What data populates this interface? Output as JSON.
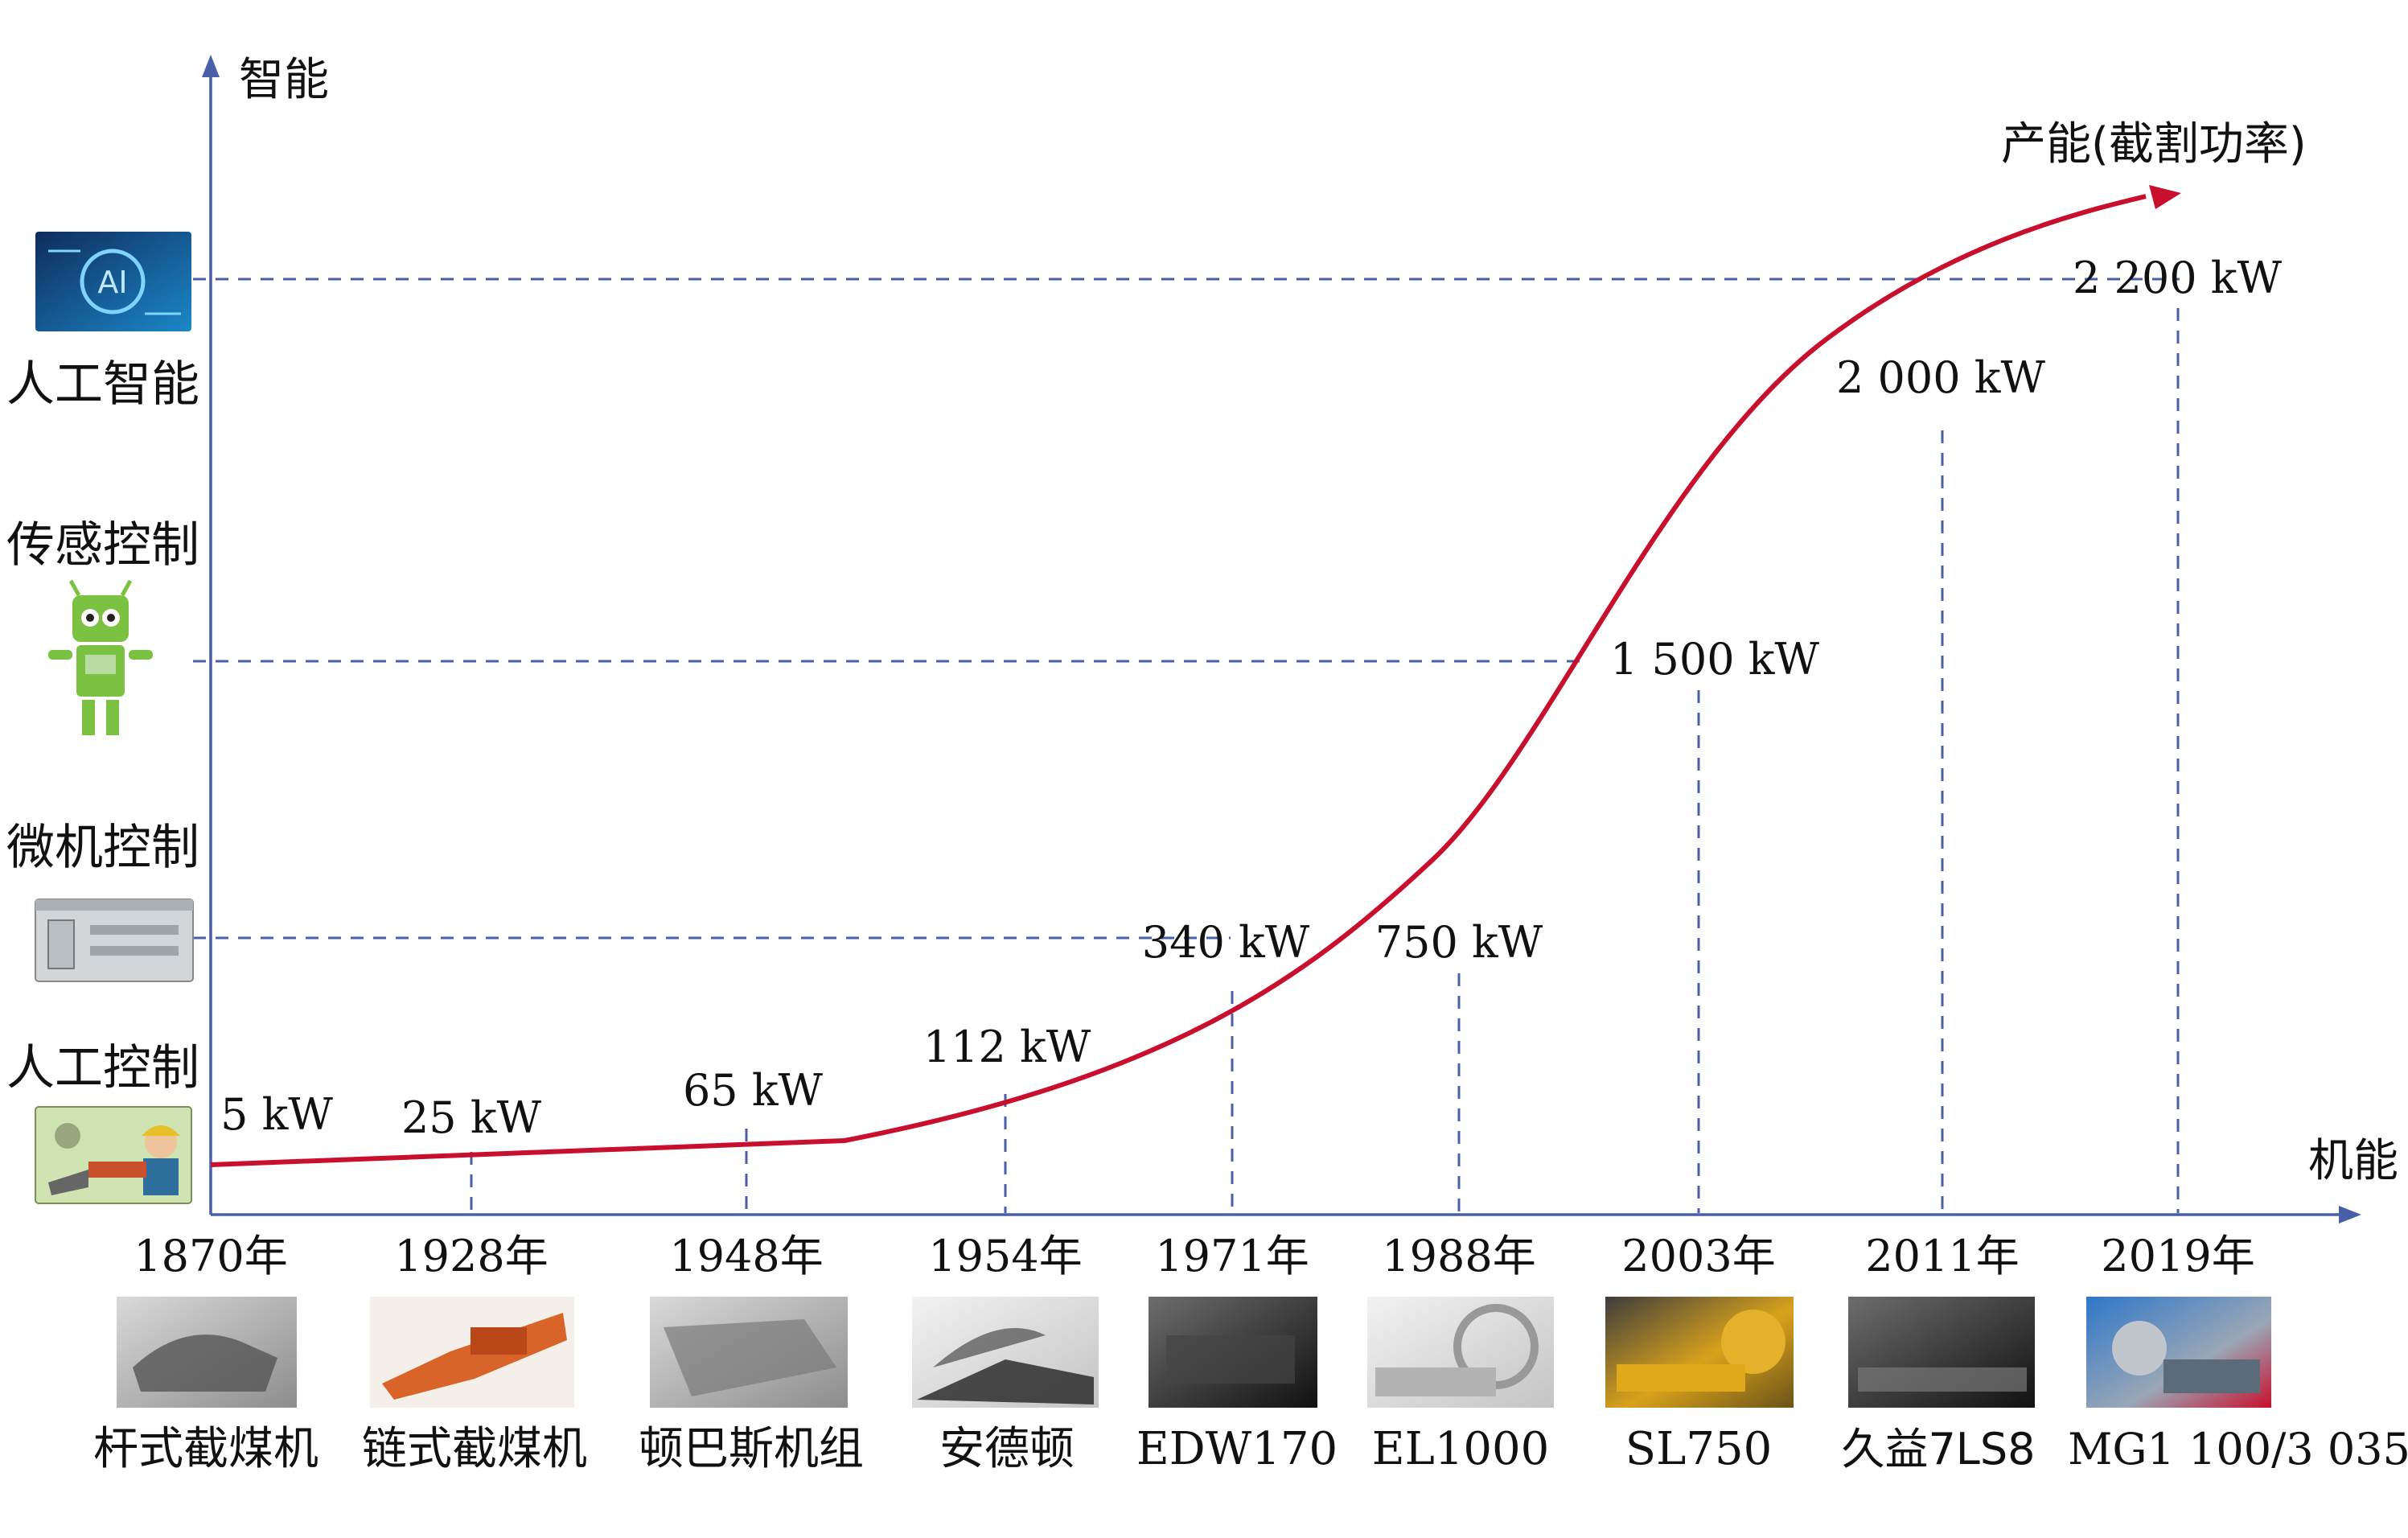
{
  "axes": {
    "y_label": "智能",
    "x_label": "机能",
    "curve_label": "产能(截割功率)"
  },
  "intelligence_levels": [
    {
      "label": "人工控制",
      "icon": "worker-operated-machine-icon"
    },
    {
      "label": "微机控制",
      "icon": "industrial-computer-icon"
    },
    {
      "label": "传感控制",
      "icon": "green-robot-icon"
    },
    {
      "label": "人工智能",
      "icon": "ai-chip-icon"
    }
  ],
  "timeline": [
    {
      "year": "1870年",
      "power": "5 kW",
      "machine": "杆式截煤机",
      "photo": "grayscale"
    },
    {
      "year": "1928年",
      "power": "25 kW",
      "machine": "链式截煤机",
      "photo": "orange"
    },
    {
      "year": "1948年",
      "power": "65 kW",
      "machine": "顿巴斯机组",
      "photo": "grayscale"
    },
    {
      "year": "1954年",
      "power": "112 kW",
      "machine": "安德顿",
      "photo": "grayscale"
    },
    {
      "year": "1971年",
      "power": "340 kW",
      "machine": "EDW170",
      "photo": "dark"
    },
    {
      "year": "1988年",
      "power": "750 kW",
      "machine": "EL1000",
      "photo": "light"
    },
    {
      "year": "2003年",
      "power": "1 500 kW",
      "machine": "SL750",
      "photo": "gold"
    },
    {
      "year": "2011年",
      "power": "2 000 kW",
      "machine": "久益7LS8",
      "photo": "dark"
    },
    {
      "year": "2019年",
      "power": "2 200 kW",
      "machine": "MG1 100/3 035",
      "photo": "color"
    }
  ],
  "colors": {
    "axis": "#4a5fa8",
    "curve": "#c8102e",
    "text": "#111111"
  }
}
